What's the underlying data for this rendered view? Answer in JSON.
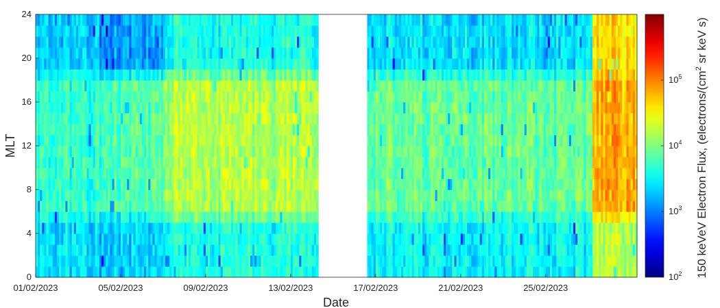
{
  "chart_data": {
    "type": "heatmap",
    "title": "",
    "xlabel": "Date",
    "ylabel": "MLT",
    "x_tick_labels": [
      "01/02/2023",
      "05/02/2023",
      "09/02/2023",
      "13/02/2023",
      "17/02/2023",
      "21/02/2023",
      "25/02/2023"
    ],
    "x_tick_days": [
      0,
      4,
      8,
      12,
      16,
      20,
      24
    ],
    "x_range_days": [
      0,
      28.3
    ],
    "y_tick_labels": [
      "0",
      "4",
      "8",
      "12",
      "16",
      "20",
      "24"
    ],
    "y_ticks": [
      0,
      4,
      8,
      12,
      16,
      20,
      24
    ],
    "ylim": [
      0,
      24
    ],
    "mlt_bin_hours": 1,
    "colormap": "jet",
    "colorbar": {
      "scale": "log",
      "label": "150 keVeV Electron Flux, (electrons/(cm^2 sr keV s)",
      "label_main": "150 keVeV Electron Flux, (electrons/(cm",
      "label_sup": "2",
      "label_end": " sr keV s)",
      "range": [
        100,
        1000000
      ],
      "ticks": [
        {
          "base": "10",
          "exp": "2",
          "value": 100
        },
        {
          "base": "10",
          "exp": "3",
          "value": 1000
        },
        {
          "base": "10",
          "exp": "4",
          "value": 10000
        },
        {
          "base": "10",
          "exp": "5",
          "value": 100000
        }
      ]
    },
    "data_gap_days": [
      13.35,
      15.5
    ],
    "flux_pattern_log10": [
      {
        "period": "01/02-03/02",
        "mlt_0_6": 3.4,
        "mlt_6_18": 3.7,
        "mlt_18_24": 3.3
      },
      {
        "period": "04/02-06/02",
        "mlt_0_6": 3.3,
        "mlt_6_18": 3.8,
        "mlt_18_24": 3.1
      },
      {
        "period": "07/02-13/02",
        "mlt_0_6": 3.6,
        "mlt_6_18": 4.2,
        "mlt_18_24": 3.6
      },
      {
        "period": "16/02-26/02",
        "mlt_0_6": 3.5,
        "mlt_6_18": 3.9,
        "mlt_18_24": 3.4
      },
      {
        "period": "27/02-28/02",
        "mlt_0_6": 4.2,
        "mlt_6_18": 4.8,
        "mlt_18_24": 4.6
      }
    ]
  }
}
